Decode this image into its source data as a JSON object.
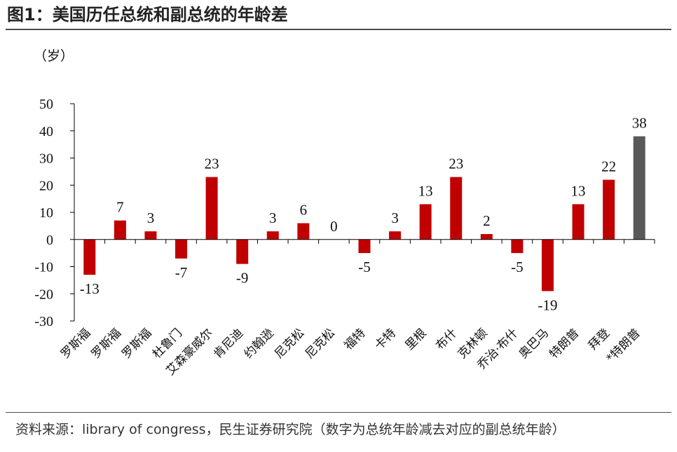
{
  "header": {
    "title": "图1：美国历任总统和副总统的年龄差"
  },
  "footer": {
    "source": "资料来源：library of congress，民生证券研究院（数字为总统年龄减去对应的副总统年龄）"
  },
  "colors": {
    "bar_default": "#c00000",
    "bar_highlight": "#595959",
    "axis": "#000000"
  },
  "chart_data": {
    "type": "bar",
    "title": "",
    "ylabel": "（岁）",
    "xlabel": "",
    "ylim": [
      -30,
      50
    ],
    "yticks": [
      50,
      40,
      30,
      20,
      10,
      0,
      -10,
      -20,
      -30
    ],
    "grid": false,
    "categories": [
      "罗斯福",
      "罗斯福",
      "罗斯福",
      "杜鲁门",
      "艾森豪威尔",
      "肯尼迪",
      "约翰逊",
      "尼克松",
      "尼克松",
      "福特",
      "卡特",
      "里根",
      "布什",
      "克林顿",
      "乔治·布什",
      "奥巴马",
      "特朗普",
      "拜登",
      "*特朗普"
    ],
    "values": [
      -13,
      7,
      3,
      -7,
      23,
      -9,
      3,
      6,
      0,
      -5,
      3,
      13,
      23,
      2,
      -5,
      -19,
      13,
      22,
      38
    ],
    "highlight_index": 18
  }
}
